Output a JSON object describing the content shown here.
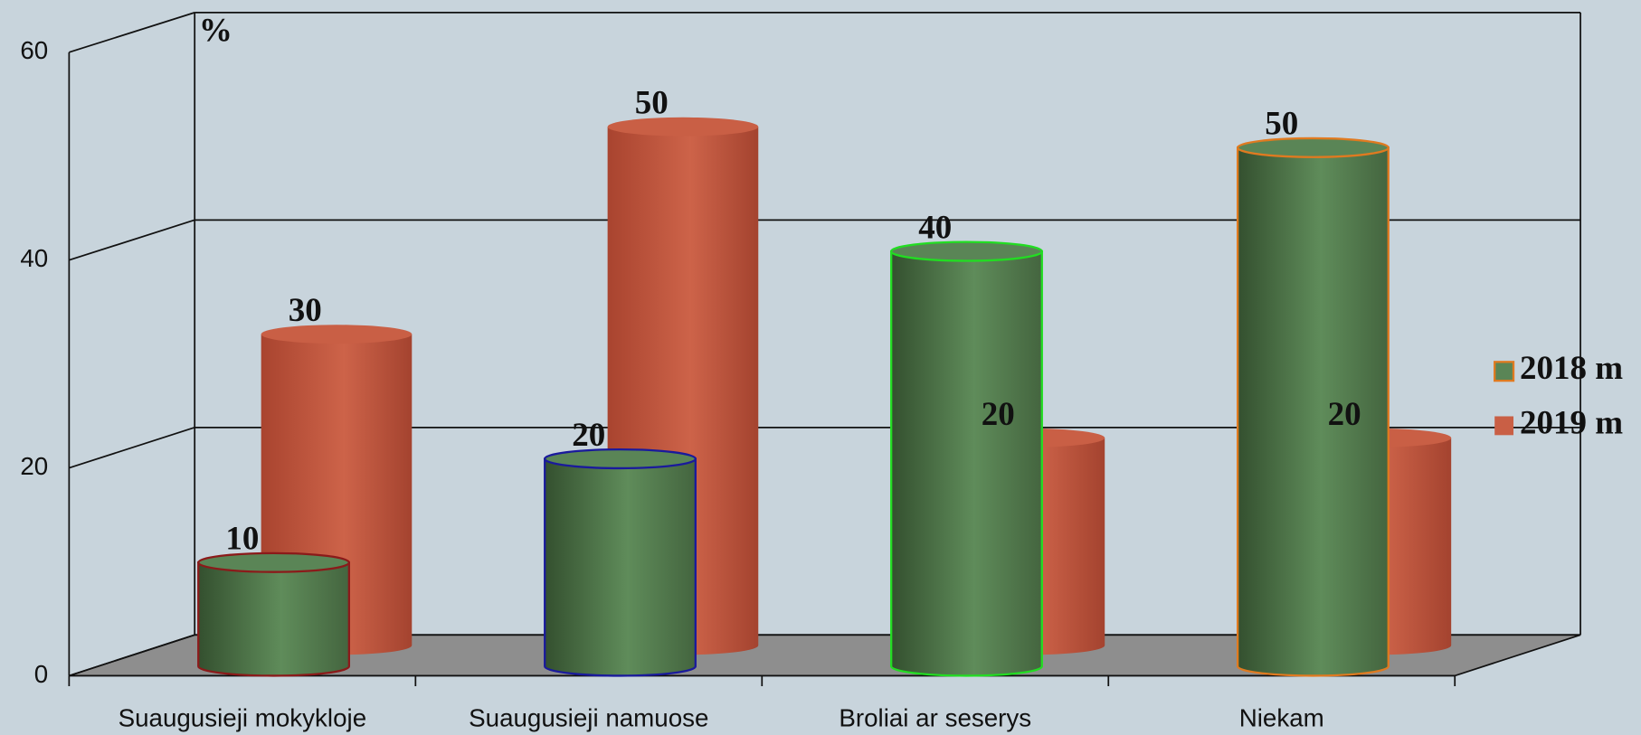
{
  "chart_data": {
    "type": "cylinder",
    "y_label": "%",
    "categories": [
      "Suaugusieji mokykloje",
      "Suaugusieji namuose",
      "Broliai ar seserys",
      "Niekam"
    ],
    "series": [
      {
        "name": "2018 m",
        "color": "#5a8556",
        "edge_colors": [
          "#8b1a1a",
          "#1a1a9c",
          "#22dd22",
          "#e07a20"
        ],
        "values": [
          10,
          20,
          40,
          50
        ]
      },
      {
        "name": "2019 m",
        "color": "#c95f45",
        "values": [
          30,
          50,
          20,
          20
        ]
      }
    ],
    "ylim": [
      0,
      60
    ],
    "yticks": [
      0,
      20,
      40,
      60
    ],
    "grid": true,
    "legend": "right"
  }
}
